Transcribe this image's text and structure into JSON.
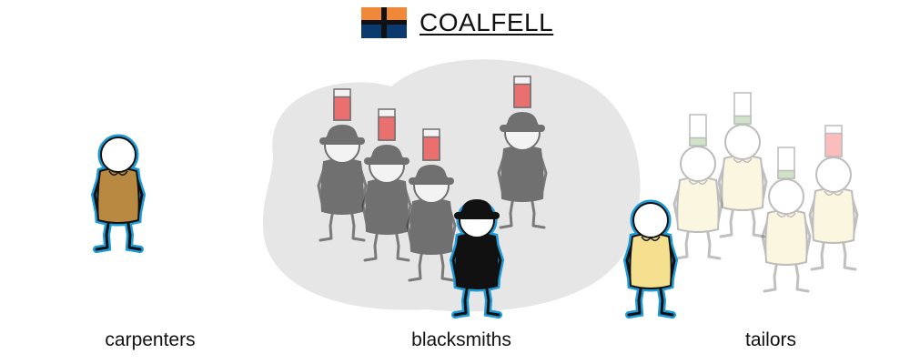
{
  "header": {
    "town_name": "COALFELL",
    "flag_colors": {
      "top": "#f0883a",
      "bottom": "#0b3a6e",
      "cross": "#111111"
    }
  },
  "groups": [
    {
      "label": "carpenters",
      "body_color": "#b98941",
      "members": [
        {
          "selected": true,
          "hat": false,
          "level": null,
          "level_color": null,
          "dimmed": false
        }
      ]
    },
    {
      "label": "blacksmiths",
      "body_color": "#111111",
      "highlighted": true,
      "members": [
        {
          "selected": false,
          "hat": true,
          "level": 0.75,
          "level_color": "#ee1111",
          "dimmed": true
        },
        {
          "selected": false,
          "hat": true,
          "level": 0.75,
          "level_color": "#ee1111",
          "dimmed": true
        },
        {
          "selected": false,
          "hat": true,
          "level": 0.75,
          "level_color": "#ee1111",
          "dimmed": true
        },
        {
          "selected": false,
          "hat": true,
          "level": 0.75,
          "level_color": "#ee1111",
          "dimmed": true
        },
        {
          "selected": true,
          "hat": true,
          "level": null,
          "level_color": null,
          "dimmed": false
        }
      ]
    },
    {
      "label": "tailors",
      "body_color": "#f4e08e",
      "members": [
        {
          "selected": false,
          "hat": false,
          "level": 0.25,
          "level_color": "#5a9e3a",
          "dimmed": true
        },
        {
          "selected": false,
          "hat": false,
          "level": 0.25,
          "level_color": "#5a9e3a",
          "dimmed": true
        },
        {
          "selected": false,
          "hat": false,
          "level": 0.25,
          "level_color": "#5a9e3a",
          "dimmed": true
        },
        {
          "selected": false,
          "hat": false,
          "level": 0.75,
          "level_color": "#ee1111",
          "dimmed": true
        },
        {
          "selected": true,
          "hat": false,
          "level": null,
          "level_color": null,
          "dimmed": false
        }
      ]
    }
  ]
}
